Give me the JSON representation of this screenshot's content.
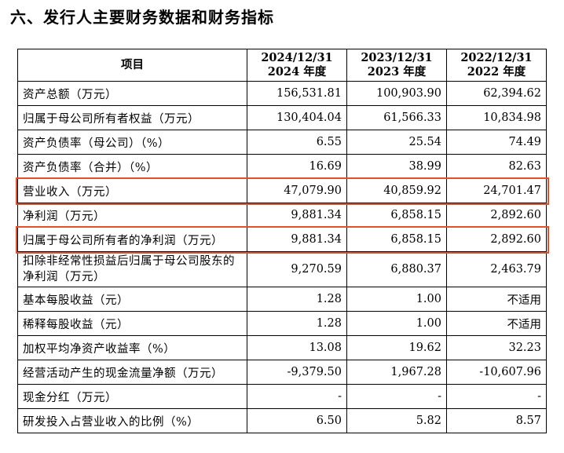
{
  "section_title": "六、发行人主要财务数据和财务指标",
  "table": {
    "headers": [
      {
        "lines": [
          "项目"
        ]
      },
      {
        "lines": [
          "2024/12/31",
          "2024 年度"
        ]
      },
      {
        "lines": [
          "2023/12/31",
          "2023 年度"
        ]
      },
      {
        "lines": [
          "2022/12/31",
          "2022 年度"
        ]
      }
    ],
    "rows": [
      {
        "label": "资产总额（万元）",
        "values": [
          "156,531.81",
          "100,903.90",
          "62,394.62"
        ],
        "highlighted": false
      },
      {
        "label": "归属于母公司所有者权益（万元）",
        "values": [
          "130,404.04",
          "61,566.33",
          "10,834.98"
        ],
        "highlighted": false
      },
      {
        "label": "资产负债率（母公司）（%）",
        "values": [
          "6.55",
          "25.54",
          "74.49"
        ],
        "highlighted": false
      },
      {
        "label": "资产负债率（合并）（%）",
        "values": [
          "16.69",
          "38.99",
          "82.63"
        ],
        "highlighted": false
      },
      {
        "label": "营业收入（万元）",
        "values": [
          "47,079.90",
          "40,859.92",
          "24,701.47"
        ],
        "highlighted": true
      },
      {
        "label": "净利润（万元）",
        "values": [
          "9,881.34",
          "6,858.15",
          "2,892.60"
        ],
        "highlighted": false
      },
      {
        "label": "归属于母公司所有者的净利润（万元）",
        "values": [
          "9,881.34",
          "6,858.15",
          "2,892.60"
        ],
        "highlighted": true
      },
      {
        "label": "扣除非经常性损益后归属于母公司股东的净利润（万元）",
        "values": [
          "9,270.59",
          "6,880.37",
          "2,463.79"
        ],
        "highlighted": false
      },
      {
        "label": "基本每股收益（元）",
        "values": [
          "1.28",
          "1.00",
          "不适用"
        ],
        "highlighted": false
      },
      {
        "label": "稀释每股收益（元）",
        "values": [
          "1.28",
          "1.00",
          "不适用"
        ],
        "highlighted": false
      },
      {
        "label": "加权平均净资产收益率（%）",
        "values": [
          "13.08",
          "19.62",
          "32.23"
        ],
        "highlighted": false
      },
      {
        "label": "经营活动产生的现金流量净额（万元）",
        "values": [
          "-9,379.50",
          "1,967.28",
          "-10,607.96"
        ],
        "highlighted": false
      },
      {
        "label": "现金分红（万元）",
        "values": [
          "-",
          "-",
          "-"
        ],
        "highlighted": false
      },
      {
        "label": "研发投入占营业收入的比例（%）",
        "values": [
          "6.50",
          "5.82",
          "8.57"
        ],
        "highlighted": false
      }
    ]
  },
  "colors": {
    "highlight_border": "#e5502a",
    "text": "#000000",
    "background": "#ffffff"
  }
}
